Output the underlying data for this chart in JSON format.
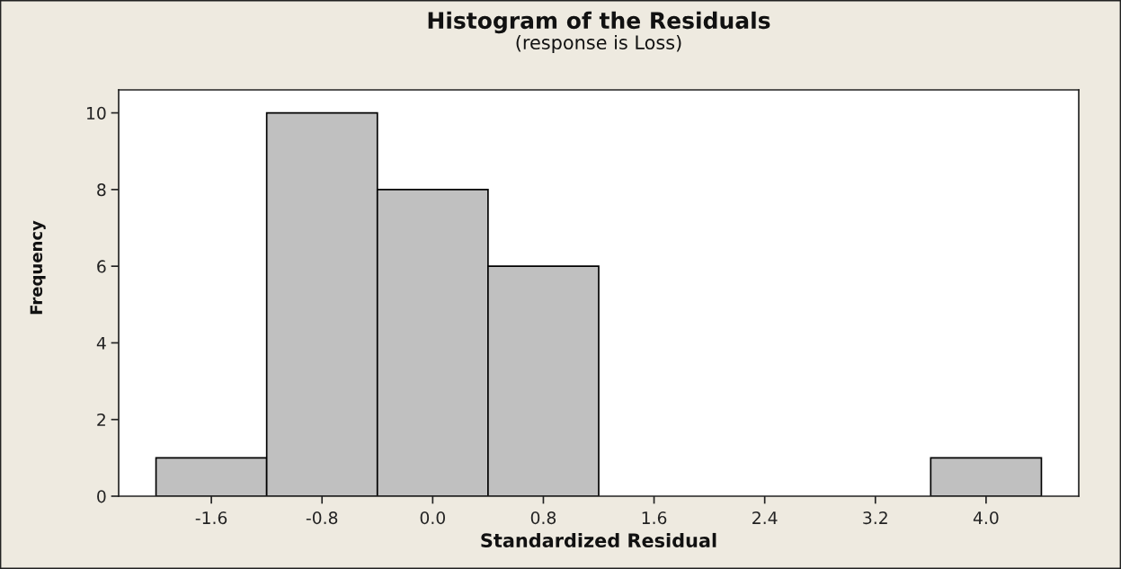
{
  "chart_data": {
    "type": "histogram",
    "title": "Histogram of the Residuals",
    "subtitle": "(response is Loss)",
    "xlabel": "Standardized Residual",
    "ylabel": "Frequency",
    "bins": [
      -2.0,
      -1.2,
      -0.4,
      0.4,
      1.2,
      2.0,
      2.8,
      3.6,
      4.4
    ],
    "values": [
      1,
      10,
      8,
      6,
      0,
      0,
      0,
      1
    ],
    "color": "#c0c0c0",
    "xlim": [
      -2.27,
      4.67
    ],
    "ylim": [
      0,
      10.6
    ],
    "xticks": [
      -1.6,
      -0.8,
      {
        "value": 0,
        "label": "0.0"
      },
      0.8,
      1.6,
      2.4,
      3.2,
      {
        "value": 4,
        "label": "4.0"
      }
    ],
    "yticks": [
      0,
      2,
      4,
      6,
      8,
      10
    ],
    "grid": false,
    "legend": false
  }
}
